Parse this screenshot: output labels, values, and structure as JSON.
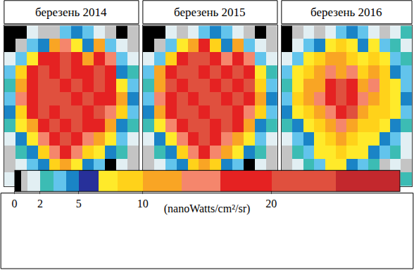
{
  "chart_data": {
    "type": "heatmap",
    "tick_labels": false,
    "panels": [
      {
        "title": "березень 2014",
        "cells": [
          [
            0.2,
            0.2,
            1.5,
            0.7,
            0.7,
            3.5,
            4.5,
            3.5,
            1.5,
            0.7,
            0.2,
            0.7
          ],
          [
            0.2,
            0.7,
            3.5,
            4.5,
            11,
            14,
            7,
            4.5,
            11,
            3.5,
            1.5,
            0.7
          ],
          [
            1.5,
            3.5,
            7,
            18,
            18,
            22,
            18,
            11,
            18,
            14,
            3.5,
            1.5
          ],
          [
            3.5,
            9,
            18,
            22,
            18,
            22,
            18,
            18,
            22,
            18,
            4.5,
            2.5
          ],
          [
            2.5,
            11,
            18,
            22,
            22,
            18,
            22,
            18,
            22,
            18,
            7,
            3.5
          ],
          [
            3.5,
            14,
            18,
            22,
            22,
            22,
            18,
            22,
            18,
            18,
            11,
            4.5
          ],
          [
            4.5,
            9,
            18,
            22,
            18,
            22,
            22,
            18,
            22,
            14,
            9,
            3.5
          ],
          [
            2.5,
            7,
            11,
            18,
            22,
            18,
            22,
            18,
            18,
            11,
            4.5,
            2.5
          ],
          [
            1.5,
            4.5,
            7,
            14,
            18,
            22,
            18,
            14,
            11,
            7,
            3.5,
            1.5
          ],
          [
            0.7,
            2.5,
            4.5,
            9,
            14,
            18,
            14,
            9,
            7,
            4.5,
            2.5,
            0.7
          ],
          [
            0.7,
            1.5,
            3.5,
            4.5,
            9,
            11,
            7,
            4.5,
            3.5,
            0.2,
            1.5,
            0.7
          ],
          [
            1.5,
            2.5,
            1.5,
            3.5,
            4.5,
            7,
            4.5,
            2.5,
            0.2,
            0.2,
            1.5,
            2.5
          ]
        ]
      },
      {
        "title": "березень 2015",
        "cells": [
          [
            0.2,
            0.2,
            1.5,
            0.7,
            1.5,
            3.5,
            4.5,
            3.5,
            1.5,
            0.7,
            0.2,
            0.7
          ],
          [
            0.2,
            0.7,
            3.5,
            7,
            11,
            18,
            9,
            4.5,
            11,
            3.5,
            1.5,
            0.7
          ],
          [
            1.5,
            3.5,
            9,
            18,
            22,
            22,
            18,
            14,
            18,
            14,
            3.5,
            1.5
          ],
          [
            3.5,
            11,
            18,
            22,
            22,
            18,
            22,
            18,
            22,
            18,
            7,
            2.5
          ],
          [
            2.5,
            11,
            22,
            18,
            22,
            22,
            18,
            22,
            18,
            22,
            9,
            3.5
          ],
          [
            3.5,
            14,
            18,
            22,
            18,
            22,
            22,
            18,
            22,
            18,
            11,
            4.5
          ],
          [
            4.5,
            11,
            18,
            22,
            22,
            18,
            22,
            22,
            18,
            14,
            9,
            3.5
          ],
          [
            2.5,
            7,
            14,
            18,
            22,
            22,
            18,
            22,
            18,
            11,
            4.5,
            2.5
          ],
          [
            1.5,
            4.5,
            7,
            14,
            18,
            22,
            18,
            14,
            11,
            7,
            3.5,
            1.5
          ],
          [
            0.7,
            2.5,
            4.5,
            9,
            14,
            18,
            14,
            11,
            7,
            4.5,
            2.5,
            0.7
          ],
          [
            0.7,
            1.5,
            3.5,
            4.5,
            9,
            11,
            9,
            4.5,
            3.5,
            0.2,
            1.5,
            0.7
          ],
          [
            1.5,
            2.5,
            1.5,
            3.5,
            4.5,
            7,
            4.5,
            2.5,
            0.2,
            0.2,
            1.5,
            2.5
          ]
        ]
      },
      {
        "title": "березень 2016",
        "cells": [
          [
            0.2,
            0.7,
            1.5,
            0.7,
            1.5,
            3.5,
            4.5,
            3.5,
            1.5,
            0.7,
            1.5,
            2.5
          ],
          [
            0.2,
            1.5,
            3.5,
            4.5,
            7,
            9,
            7,
            4.5,
            7,
            3.5,
            2.5,
            1.5
          ],
          [
            1.5,
            3.5,
            7,
            9,
            11,
            11,
            9,
            7,
            9,
            7,
            3.5,
            2.5
          ],
          [
            3.5,
            7,
            9,
            11,
            14,
            11,
            14,
            9,
            11,
            9,
            4.5,
            3.5
          ],
          [
            2.5,
            7,
            11,
            11,
            18,
            22,
            18,
            11,
            14,
            9,
            7,
            3.5
          ],
          [
            3.5,
            9,
            11,
            14,
            18,
            22,
            18,
            14,
            11,
            9,
            7,
            4.5
          ],
          [
            4.5,
            7,
            9,
            11,
            14,
            18,
            22,
            11,
            9,
            9,
            7,
            3.5
          ],
          [
            2.5,
            4.5,
            7,
            9,
            11,
            14,
            11,
            9,
            9,
            7,
            4.5,
            2.5
          ],
          [
            1.5,
            3.5,
            4.5,
            7,
            9,
            11,
            9,
            7,
            7,
            4.5,
            3.5,
            1.5
          ],
          [
            0.7,
            2.5,
            3.5,
            7,
            7,
            9,
            7,
            7,
            4.5,
            3.5,
            2.5,
            1.5
          ],
          [
            0.7,
            1.5,
            2.5,
            3.5,
            7,
            7,
            4.5,
            3.5,
            2.5,
            0.7,
            1.5,
            0.7
          ],
          [
            1.5,
            2.5,
            1.5,
            3.5,
            4.5,
            4.5,
            3.5,
            2.5,
            0.2,
            0.2,
            1.5,
            2.5
          ]
        ]
      }
    ],
    "colorbar": {
      "range": [
        0,
        30
      ],
      "ticks": [
        0,
        2,
        5,
        10,
        20
      ],
      "bins": [
        0,
        0.5,
        1,
        2,
        3,
        4,
        5,
        6.5,
        8,
        10,
        13,
        16,
        20,
        25,
        30
      ],
      "colors": [
        "#000000",
        "#c4c4c4",
        "#e2eff3",
        "#3cbcb4",
        "#62c4ec",
        "#1a84c6",
        "#27309a",
        "#ffea2a",
        "#ffd21a",
        "#f9a524",
        "#f5866c",
        "#e52222",
        "#e0503e",
        "#c3282d"
      ],
      "label": "(nanoWatts/cm²/sr)"
    }
  }
}
